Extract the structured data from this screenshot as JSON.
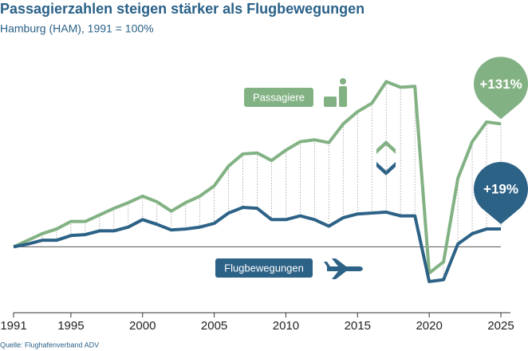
{
  "chart_data": {
    "type": "line",
    "title": "Passagierzahlen steigen stärker als Flugbewegungen",
    "subtitle": "Hamburg (HAM), 1991 = 100%",
    "source": "Quelle: Flughafenverband ADV",
    "x": [
      1991,
      1992,
      1993,
      1994,
      1995,
      1996,
      1997,
      1998,
      1999,
      2000,
      2001,
      2002,
      2003,
      2004,
      2005,
      2006,
      2007,
      2008,
      2009,
      2010,
      2011,
      2012,
      2013,
      2014,
      2015,
      2016,
      2017,
      2018,
      2019,
      2020,
      2021,
      2022,
      2023,
      2024,
      2025
    ],
    "series": [
      {
        "name": "Passagiere",
        "color": "#82b283",
        "end_label": "+131%",
        "values": [
          100,
          107,
          114,
          119,
          127,
          127,
          134,
          141,
          147,
          154,
          148,
          138,
          147,
          154,
          165,
          186,
          199,
          200,
          192,
          203,
          212,
          214,
          211,
          231,
          244,
          253,
          276,
          270,
          271,
          72,
          84,
          173,
          212,
          233,
          231
        ]
      },
      {
        "name": "Flugbewegungen",
        "color": "#2d6287",
        "end_label": "+19%",
        "values": [
          100,
          103,
          107,
          107,
          112,
          113,
          117,
          117,
          121,
          129,
          124,
          118,
          119,
          121,
          125,
          136,
          142,
          141,
          129,
          129,
          133,
          129,
          122,
          131,
          135,
          136,
          137,
          133,
          133,
          63,
          65,
          103,
          114,
          119,
          119
        ]
      }
    ],
    "xlim": [
      1991,
      2025
    ],
    "xticks": [
      1991,
      1995,
      2000,
      2005,
      2010,
      2015,
      2020,
      2025
    ],
    "ylim": [
      40,
      312
    ],
    "reference_line": 100
  }
}
